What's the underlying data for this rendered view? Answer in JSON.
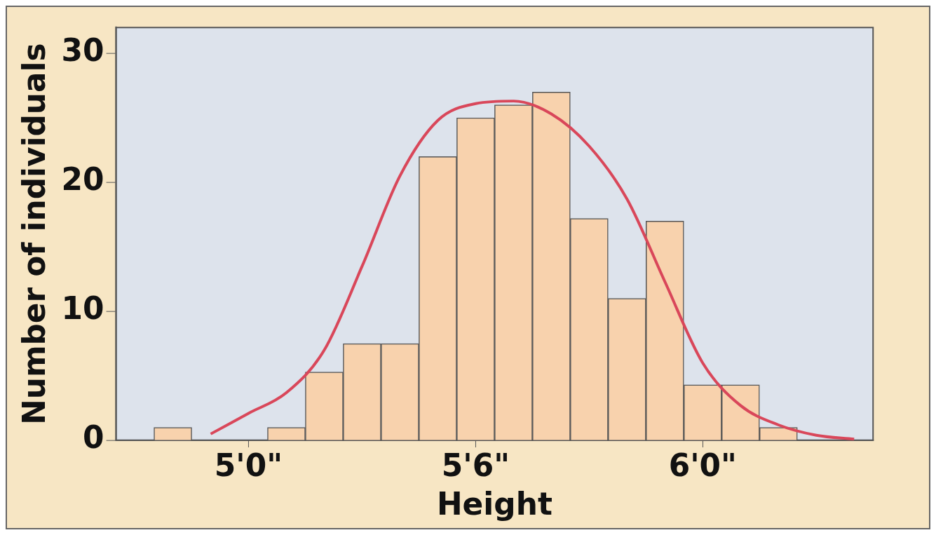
{
  "chart_data": {
    "type": "bar",
    "xlabel": "Height",
    "ylabel": "Number of individuals",
    "categories": [
      null,
      null,
      null,
      "5'0\"",
      null,
      null,
      null,
      null,
      null,
      "5'6\"",
      null,
      null,
      null,
      null,
      null,
      "6'0\"",
      null,
      null,
      null,
      null
    ],
    "values": [
      0,
      1,
      0,
      0,
      1,
      5.3,
      7.5,
      7.5,
      22,
      25,
      26,
      27,
      17.2,
      11,
      17,
      4.3,
      4.3,
      1,
      0,
      0
    ],
    "color": "#f8d2ad",
    "series": [
      {
        "type": "line",
        "color": "#d9475a",
        "values": [
          null,
          null,
          0.5,
          2.1,
          3.7,
          7,
          13.5,
          20.5,
          24.8,
          26.1,
          26.3,
          25.3,
          22.8,
          18.7,
          12.3,
          6,
          2.7,
          1.2,
          0.4,
          0.1
        ]
      }
    ],
    "ylim": [
      0,
      32
    ],
    "yticks": [
      0,
      10,
      20,
      30
    ],
    "grid": false,
    "legend": false
  }
}
